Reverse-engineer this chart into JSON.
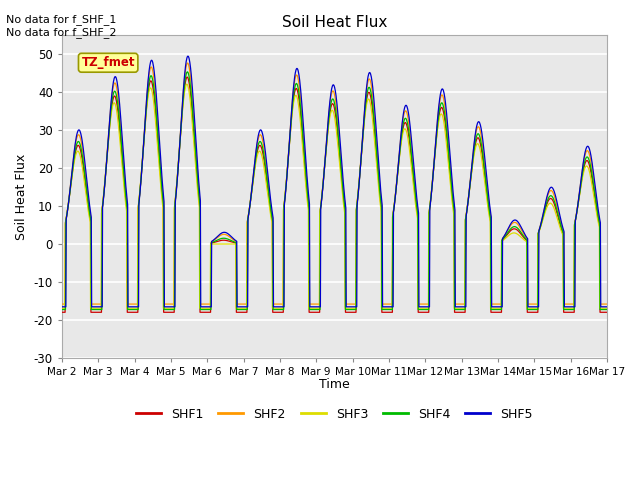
{
  "title": "Soil Heat Flux",
  "ylabel": "Soil Heat Flux",
  "xlabel": "Time",
  "ylim": [
    -30,
    55
  ],
  "xlim": [
    0,
    15
  ],
  "xtick_labels": [
    "Mar 2",
    "Mar 3",
    "Mar 4",
    "Mar 5",
    "Mar 6",
    "Mar 7",
    "Mar 8",
    "Mar 9",
    "Mar 10",
    "Mar 11",
    "Mar 12",
    "Mar 13",
    "Mar 14",
    "Mar 15",
    "Mar 16",
    "Mar 17"
  ],
  "ytick_labels": [
    -30,
    -20,
    -10,
    0,
    10,
    20,
    30,
    40,
    50
  ],
  "series_colors": [
    "#cc0000",
    "#ff9900",
    "#dddd00",
    "#00bb00",
    "#0000cc"
  ],
  "series_names": [
    "SHF1",
    "SHF2",
    "SHF3",
    "SHF4",
    "SHF5"
  ],
  "annotation_text": "No data for f_SHF_1\nNo data for f_SHF_2",
  "tag_text": "TZ_fmet",
  "tag_bg": "#ffff99",
  "tag_border": "#999900",
  "tag_text_color": "#cc0000",
  "plot_bg_color": "#e8e8e8",
  "grid_color": "#ffffff",
  "num_points": 1500,
  "day_peaks": [
    26,
    39,
    43,
    44,
    1,
    26,
    41,
    37,
    40,
    32,
    36,
    28,
    4,
    12,
    22
  ],
  "night_trough": -18
}
